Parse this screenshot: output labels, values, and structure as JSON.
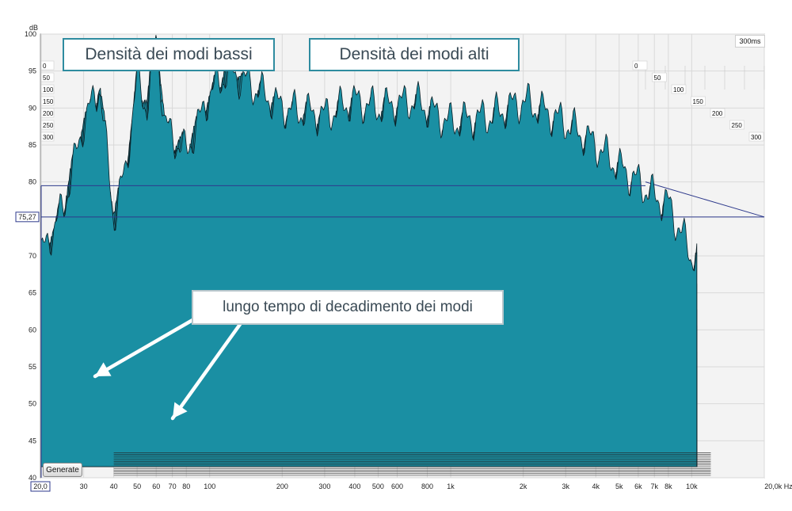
{
  "chart_data": {
    "type": "area",
    "title": "",
    "ylabel": "dB",
    "xlabel": "Hz",
    "ylim": [
      40,
      100
    ],
    "xlim": [
      20,
      20000
    ],
    "xscale": "log",
    "yticks": [
      "100",
      "95",
      "90",
      "85",
      "80",
      "75,27",
      "70",
      "65",
      "60",
      "55",
      "50",
      "45",
      "40"
    ],
    "xticks": [
      "20,0",
      "30",
      "40",
      "50",
      "60",
      "70",
      "80",
      "100",
      "200",
      "300",
      "400",
      "500",
      "600",
      "800",
      "1k",
      "2k",
      "3k",
      "4k",
      "5k",
      "6k",
      "7k",
      "8k",
      "10k",
      "20,0k Hz"
    ],
    "cursor_value": "75,27",
    "time_range_label": "300ms",
    "left_slice_labels": [
      "0",
      "50",
      "100",
      "150",
      "200",
      "250",
      "300"
    ],
    "right_slice_labels": [
      "0",
      "50",
      "100",
      "150",
      "200",
      "250",
      "300"
    ],
    "series": [
      {
        "name": "0",
        "x": [
          20,
          25,
          30,
          35,
          40,
          45,
          50,
          55,
          60,
          65,
          70,
          80,
          90,
          100,
          120,
          150,
          200,
          300,
          400,
          500,
          700,
          1000,
          1500,
          2000,
          3000,
          4000,
          5000,
          6000,
          7000,
          8000,
          10000
        ],
        "y": [
          70,
          77,
          88,
          93,
          75,
          82,
          94,
          90,
          100,
          88,
          86,
          84,
          88,
          92,
          95,
          93,
          90,
          89,
          91,
          90,
          91,
          88,
          89,
          91,
          88,
          85,
          82,
          80,
          78,
          77,
          70
        ]
      }
    ],
    "slices": 26,
    "grid": true
  },
  "annotations": {
    "low_modes": "Densità dei modi bassi",
    "high_modes": "Densità dei modi alti",
    "decay": "lungo tempo di decadimento dei modi"
  },
  "controls": {
    "generate_label": "Generate"
  },
  "colors": {
    "fill": "#1a8fa3",
    "stroke": "#0b1f26",
    "cursor": "#2e3a8c",
    "grid": "#d9d9d9",
    "background": "#f2f2f2"
  }
}
